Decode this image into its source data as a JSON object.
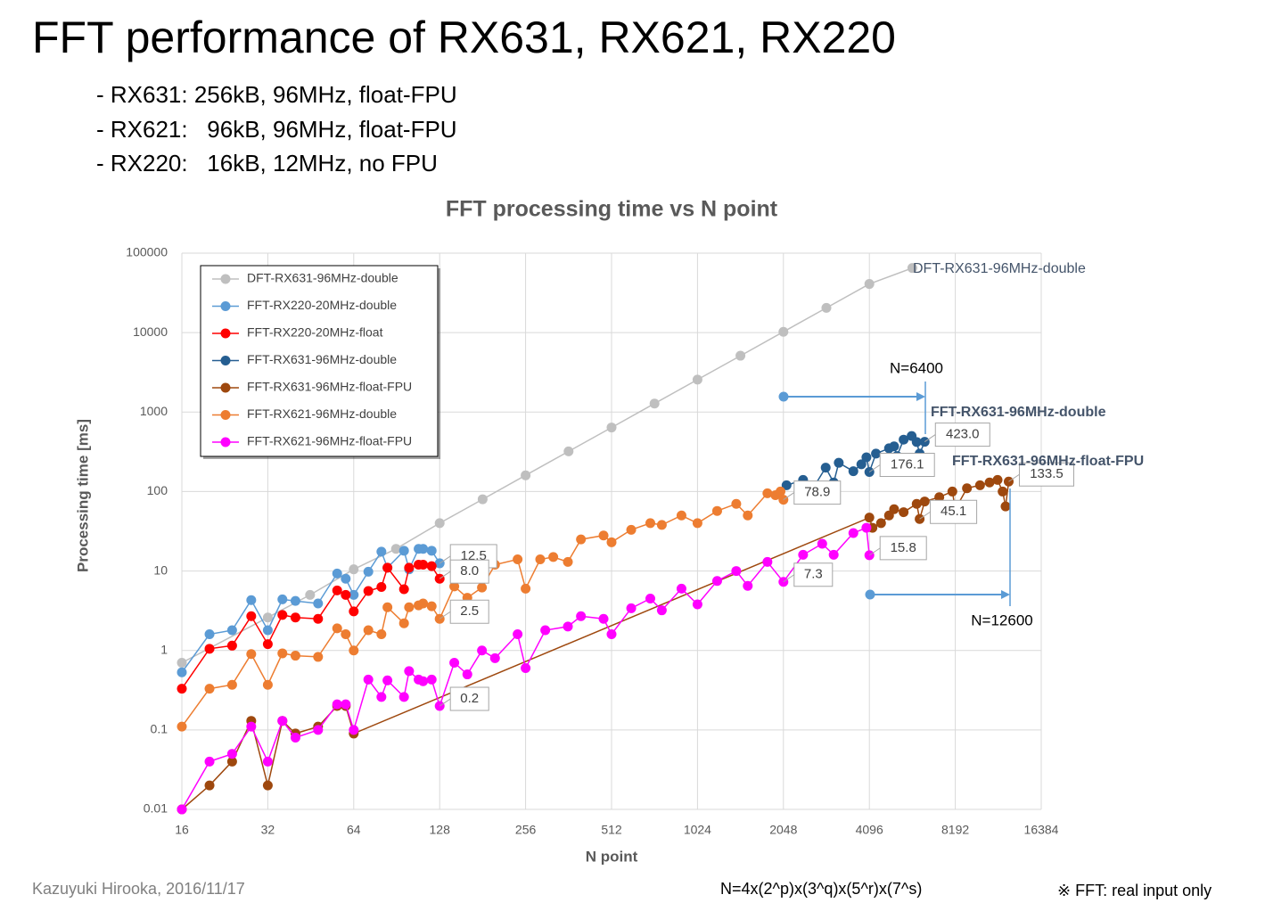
{
  "slide": {
    "title": "FFT performance of RX631, RX621, RX220",
    "bullets": [
      "- RX631: 256kB, 96MHz, float-FPU",
      "- RX621:   96kB, 96MHz, float-FPU",
      "- RX220:   16kB, 12MHz, no FPU"
    ],
    "author": "Kazuyuki Hirooka, 2016/11/17",
    "formula": "N=4x(2^p)x(3^q)x(5^r)x(7^s)",
    "note": "※ FFT: real input only"
  },
  "chart_data": {
    "type": "line",
    "title": "FFT processing time vs N point",
    "x_label": "N point",
    "y_label": "Processing time [ms]",
    "xscale": "log2",
    "yscale": "log10",
    "grid": true,
    "legend": "upper left",
    "xlim": [
      16,
      16384
    ],
    "xticks": [
      16,
      32,
      64,
      128,
      256,
      512,
      1024,
      2048,
      4096,
      8192,
      16384
    ],
    "ylim": [
      0.01,
      100000
    ],
    "yticks": [
      0.01,
      0.1,
      1,
      10,
      100,
      1000,
      10000,
      100000
    ],
    "annotations": [
      "N=6400",
      "N=12600",
      "FFT-RX631-96MHz-double",
      "FFT-RX631-96MHz-float-FPU",
      "DFT-RX631-96MHz-double"
    ],
    "series": [
      {
        "name": "DFT-RX631-96MHz-double",
        "color": "#bfbfbf",
        "x": [
          16,
          32,
          45,
          64,
          90,
          128,
          181,
          256,
          362,
          512,
          724,
          1024,
          1448,
          2048,
          2896,
          4096,
          5793
        ],
        "values": [
          0.7,
          2.6,
          5,
          10.5,
          19,
          40,
          80,
          160,
          320,
          640,
          1280,
          2560,
          5120,
          10240,
          20480,
          40960,
          65000
        ]
      },
      {
        "name": "FFT-RX220-20MHz-double",
        "color": "#5b9bd5",
        "x": [
          16,
          20,
          24,
          28,
          32,
          36,
          40,
          48,
          56,
          60,
          64,
          72,
          80,
          84,
          96,
          100,
          108,
          112,
          120,
          128
        ],
        "values": [
          0.53,
          1.6,
          1.8,
          4.3,
          1.8,
          4.4,
          4.2,
          3.9,
          9.3,
          8,
          5,
          9.8,
          17.5,
          11,
          18,
          10.5,
          19,
          19,
          18,
          12.5
        ],
        "value_labels": [
          null,
          null,
          null,
          null,
          null,
          null,
          null,
          null,
          null,
          null,
          null,
          null,
          null,
          null,
          null,
          null,
          null,
          null,
          null,
          "12.5"
        ]
      },
      {
        "name": "FFT-RX220-20MHz-float",
        "color": "#ff0000",
        "x": [
          16,
          20,
          24,
          28,
          32,
          36,
          40,
          48,
          56,
          60,
          64,
          72,
          80,
          84,
          96,
          100,
          108,
          112,
          120,
          128
        ],
        "values": [
          0.33,
          1.05,
          1.15,
          2.7,
          1.2,
          2.8,
          2.6,
          2.5,
          5.7,
          5,
          3.1,
          5.6,
          6.3,
          11,
          5.9,
          11,
          12,
          12,
          11.5,
          8
        ],
        "value_labels": [
          null,
          null,
          null,
          null,
          null,
          null,
          null,
          null,
          null,
          null,
          null,
          null,
          null,
          null,
          null,
          null,
          null,
          null,
          null,
          "8.0"
        ]
      },
      {
        "name": "FFT-RX631-96MHz-double",
        "color": "#255e91",
        "x": [
          2100,
          2400,
          2560,
          2880,
          3072,
          3200,
          3600,
          3840,
          4000,
          4096,
          4320,
          4800,
          5000,
          5120,
          5400,
          5760,
          6000,
          6144,
          6400
        ],
        "values": [
          120,
          140,
          100,
          200,
          130,
          230,
          180,
          220,
          270,
          176.1,
          300,
          350,
          370,
          280,
          450,
          500,
          420,
          300,
          423
        ],
        "value_labels": [
          null,
          null,
          null,
          null,
          null,
          null,
          null,
          null,
          null,
          "176.1",
          null,
          null,
          null,
          null,
          null,
          null,
          null,
          null,
          "423.0"
        ]
      },
      {
        "name": "FFT-RX631-96MHz-float-FPU",
        "color": "#9e480e",
        "x": [
          16,
          20,
          24,
          28,
          32,
          36,
          40,
          48,
          56,
          60,
          64,
          4096,
          4200,
          4500,
          4800,
          5000,
          5400,
          6000,
          6144,
          6400,
          7200,
          8000,
          8192,
          9000,
          10000,
          10800,
          11520,
          12000,
          12288,
          12600
        ],
        "values": [
          0.01,
          0.02,
          0.04,
          0.13,
          0.02,
          0.13,
          0.09,
          0.11,
          0.2,
          0.2,
          0.09,
          47,
          35,
          40,
          50,
          60,
          55,
          70,
          45.1,
          75,
          85,
          100,
          60,
          110,
          120,
          130,
          140,
          100,
          65,
          133.5
        ],
        "value_labels": [
          null,
          null,
          null,
          null,
          null,
          null,
          null,
          null,
          null,
          null,
          null,
          null,
          null,
          null,
          null,
          null,
          null,
          null,
          "45.1",
          null,
          null,
          null,
          null,
          null,
          null,
          null,
          null,
          null,
          null,
          "133.5"
        ]
      },
      {
        "name": "FFT-RX621-96MHz-double",
        "color": "#ed7d31",
        "x": [
          16,
          20,
          24,
          28,
          32,
          36,
          40,
          48,
          56,
          60,
          64,
          72,
          80,
          84,
          96,
          100,
          108,
          112,
          120,
          128,
          144,
          160,
          180,
          200,
          240,
          256,
          288,
          320,
          360,
          400,
          480,
          512,
          600,
          700,
          768,
          900,
          1024,
          1200,
          1400,
          1536,
          1800,
          1920,
          2000,
          2048
        ],
        "values": [
          0.11,
          0.33,
          0.37,
          0.9,
          0.37,
          0.92,
          0.86,
          0.83,
          1.9,
          1.6,
          1,
          1.8,
          1.6,
          3.5,
          2.2,
          3.5,
          3.7,
          3.9,
          3.6,
          2.5,
          6.4,
          4.6,
          6.2,
          12,
          14,
          6,
          14,
          15,
          13,
          25,
          28,
          23,
          33,
          40,
          38,
          50,
          40,
          57,
          70,
          50,
          95,
          90,
          100,
          78.9
        ],
        "value_labels": [
          null,
          null,
          null,
          null,
          null,
          null,
          null,
          null,
          null,
          null,
          null,
          null,
          null,
          null,
          null,
          null,
          null,
          null,
          null,
          "2.5",
          null,
          null,
          null,
          null,
          null,
          null,
          null,
          null,
          null,
          null,
          null,
          null,
          null,
          null,
          null,
          null,
          null,
          null,
          null,
          null,
          null,
          null,
          null,
          "78.9"
        ]
      },
      {
        "name": "FFT-RX621-96MHz-float-FPU",
        "color": "#ff00ff",
        "x": [
          16,
          20,
          24,
          28,
          32,
          36,
          40,
          48,
          56,
          60,
          64,
          72,
          80,
          84,
          96,
          100,
          108,
          112,
          120,
          128,
          144,
          160,
          180,
          200,
          240,
          256,
          300,
          360,
          400,
          480,
          512,
          600,
          700,
          768,
          900,
          1024,
          1200,
          1400,
          1536,
          1800,
          2048,
          2400,
          2800,
          3072,
          3600,
          4000,
          4096
        ],
        "values": [
          0.01,
          0.04,
          0.05,
          0.11,
          0.04,
          0.13,
          0.08,
          0.1,
          0.21,
          0.21,
          0.1,
          0.43,
          0.26,
          0.42,
          0.26,
          0.55,
          0.43,
          0.41,
          0.43,
          0.2,
          0.7,
          0.5,
          1,
          0.8,
          1.6,
          0.6,
          1.8,
          2,
          2.7,
          2.5,
          1.6,
          3.4,
          4.5,
          3.2,
          6,
          3.8,
          7.5,
          10,
          6.5,
          13,
          7.3,
          16,
          22,
          16,
          30,
          35,
          15.8
        ],
        "value_labels": [
          null,
          null,
          null,
          null,
          null,
          null,
          null,
          null,
          null,
          null,
          null,
          null,
          null,
          null,
          null,
          null,
          null,
          null,
          null,
          "0.2",
          null,
          null,
          null,
          null,
          null,
          null,
          null,
          null,
          null,
          null,
          null,
          null,
          null,
          null,
          null,
          null,
          null,
          null,
          null,
          null,
          "7.3",
          null,
          null,
          null,
          null,
          null,
          "15.8"
        ]
      }
    ]
  }
}
